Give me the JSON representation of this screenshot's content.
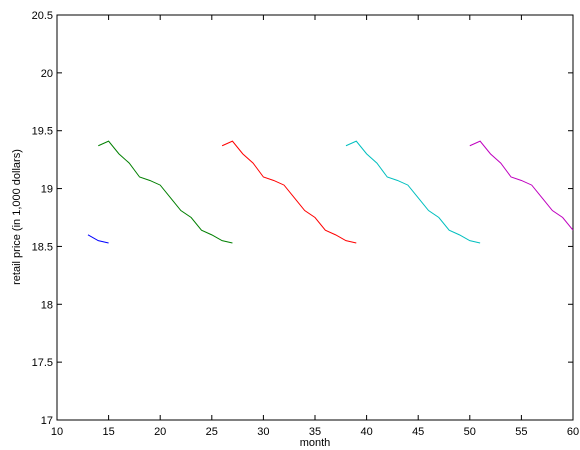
{
  "chart_data": {
    "type": "line",
    "title": "",
    "xlabel": "month",
    "ylabel": "retail price (in 1,000 dollars)",
    "xlim": [
      10,
      60
    ],
    "ylim": [
      17,
      20.5
    ],
    "xticks": [
      10,
      15,
      20,
      25,
      30,
      35,
      40,
      45,
      50,
      55,
      60
    ],
    "yticks": [
      17,
      17.5,
      18,
      18.5,
      19,
      19.5,
      20,
      20.5
    ],
    "grid": false,
    "legend": "none",
    "series": [
      {
        "color": "#0000ff",
        "x": [
          13,
          14,
          15
        ],
        "y": [
          18.6,
          18.55,
          18.53
        ]
      },
      {
        "color": "#007f00",
        "x": [
          14,
          15,
          16,
          17,
          18,
          19,
          20,
          21,
          22,
          23,
          24,
          25,
          26,
          27
        ],
        "y": [
          19.37,
          19.41,
          19.3,
          19.22,
          19.1,
          19.07,
          19.03,
          18.92,
          18.81,
          18.75,
          18.64,
          18.6,
          18.55,
          18.53
        ]
      },
      {
        "color": "#ff0000",
        "x": [
          26,
          27,
          28,
          29,
          30,
          31,
          32,
          33,
          34,
          35,
          36,
          37,
          38,
          39
        ],
        "y": [
          19.37,
          19.41,
          19.3,
          19.22,
          19.1,
          19.07,
          19.03,
          18.92,
          18.81,
          18.75,
          18.64,
          18.6,
          18.55,
          18.53
        ]
      },
      {
        "color": "#00bfbf",
        "x": [
          38,
          39,
          40,
          41,
          42,
          43,
          44,
          45,
          46,
          47,
          48,
          49,
          50,
          51
        ],
        "y": [
          19.37,
          19.41,
          19.3,
          19.22,
          19.1,
          19.07,
          19.03,
          18.92,
          18.81,
          18.75,
          18.64,
          18.6,
          18.55,
          18.53
        ]
      },
      {
        "color": "#bf00bf",
        "x": [
          50,
          51,
          52,
          53,
          54,
          55,
          56,
          57,
          58,
          59,
          60
        ],
        "y": [
          19.37,
          19.41,
          19.3,
          19.22,
          19.1,
          19.07,
          19.03,
          18.92,
          18.81,
          18.75,
          18.64
        ]
      }
    ]
  }
}
